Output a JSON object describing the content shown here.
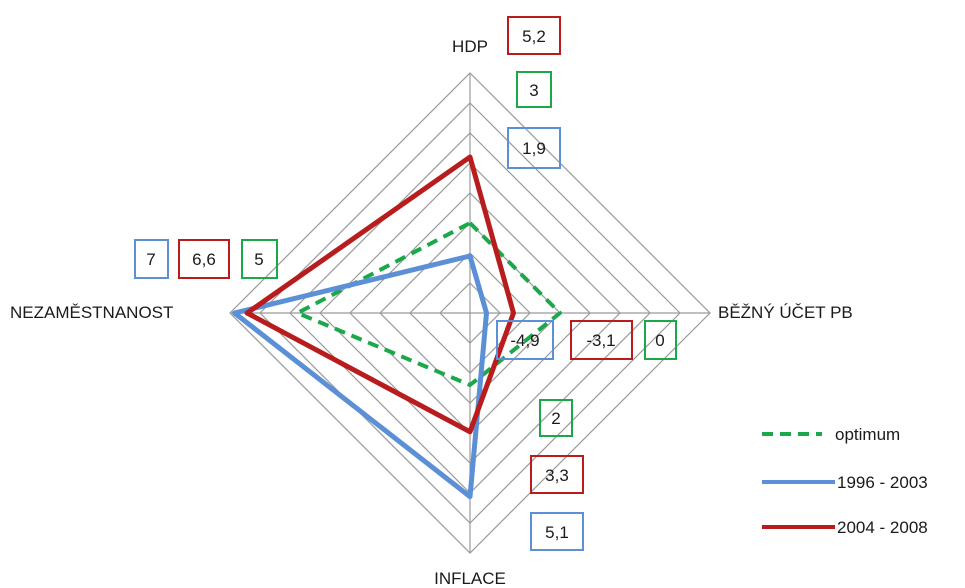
{
  "chart_data": {
    "type": "radar",
    "axes": [
      "HDP",
      "BĚŽNÝ ÚČET PB",
      "INFLACE",
      "NEZAMĚSTNANOST"
    ],
    "rings": 8,
    "grid": true,
    "legend_position": "bottom-right",
    "series": [
      {
        "name": "optimum",
        "color": "#1aa84b",
        "style": "dashed",
        "values": [
          3,
          0,
          2,
          5
        ],
        "labels": [
          "3",
          "0",
          "2",
          "5"
        ]
      },
      {
        "name": "1996 - 2003",
        "color": "#5b8fd6",
        "style": "solid",
        "values": [
          1.9,
          -4.9,
          5.1,
          7
        ],
        "labels": [
          "1,9",
          "-4,9",
          "5,1",
          "7"
        ]
      },
      {
        "name": "2004 - 2008",
        "color": "#b81c1c",
        "style": "solid",
        "values": [
          5.2,
          -3.1,
          3.3,
          6.6
        ],
        "labels": [
          "5,2",
          "-3,1",
          "3,3",
          "6,6"
        ]
      }
    ]
  }
}
